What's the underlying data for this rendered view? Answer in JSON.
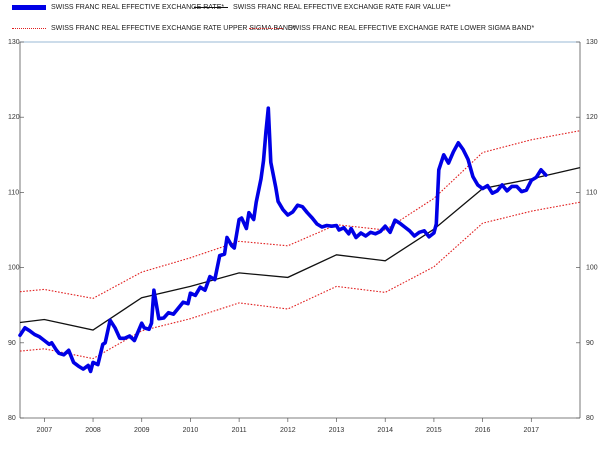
{
  "legend": {
    "actual_label": "SWISS FRANC REAL EFFECTIVE EXCHANGE RATE*",
    "fair_label": "SWISS FRANC REAL EFFECTIVE EXCHANGE RATE FAIR VALUE**",
    "upper_label": "SWISS FRANC REAL EFFECTIVE EXCHANGE RATE UPPER SIGMA BAND*",
    "lower_label": "SWISS FRANC REAL EFFECTIVE EXCHANGE RATE LOWER SIGMA BAND*"
  },
  "colors": {
    "actual": "#0000e6",
    "fair": "#111111",
    "band": "#e11f1f",
    "axis": "#555555",
    "topline": "#9ab8d6"
  },
  "chart_data": {
    "type": "line",
    "xlim": [
      2006.5,
      2018.0
    ],
    "ylim": [
      80,
      130
    ],
    "y_ticks": [
      80,
      90,
      100,
      110,
      120,
      130
    ],
    "x_tick_labels": [
      "2007",
      "2008",
      "2009",
      "2010",
      "2011",
      "2012",
      "2013",
      "2014",
      "2015",
      "2016",
      "2017"
    ],
    "grid": false,
    "legend_position": "top",
    "series": [
      {
        "name": "SWISS FRANC REAL EFFECTIVE EXCHANGE RATE*",
        "key": "actual",
        "x": [
          2006.5,
          2006.6,
          2006.7,
          2006.8,
          2006.9,
          2007.0,
          2007.1,
          2007.15,
          2007.25,
          2007.3,
          2007.4,
          2007.5,
          2007.6,
          2007.7,
          2007.8,
          2007.9,
          2007.95,
          2008.0,
          2008.1,
          2008.2,
          2008.25,
          2008.35,
          2008.45,
          2008.55,
          2008.65,
          2008.75,
          2008.85,
          2009.0,
          2009.05,
          2009.15,
          2009.2,
          2009.25,
          2009.35,
          2009.45,
          2009.55,
          2009.65,
          2009.75,
          2009.85,
          2009.95,
          2010.0,
          2010.1,
          2010.2,
          2010.3,
          2010.4,
          2010.5,
          2010.6,
          2010.7,
          2010.75,
          2010.85,
          2010.9,
          2011.0,
          2011.05,
          2011.15,
          2011.2,
          2011.3,
          2011.35,
          2011.45,
          2011.5,
          2011.55,
          2011.6,
          2011.65,
          2011.75,
          2011.8,
          2011.9,
          2012.0,
          2012.1,
          2012.2,
          2012.3,
          2012.4,
          2012.5,
          2012.6,
          2012.7,
          2012.8,
          2012.9,
          2013.0,
          2013.05,
          2013.15,
          2013.25,
          2013.3,
          2013.4,
          2013.5,
          2013.6,
          2013.7,
          2013.8,
          2013.9,
          2014.0,
          2014.1,
          2014.2,
          2014.3,
          2014.4,
          2014.5,
          2014.6,
          2014.7,
          2014.8,
          2014.9,
          2015.0,
          2015.05,
          2015.1,
          2015.2,
          2015.3,
          2015.4,
          2015.5,
          2015.6,
          2015.7,
          2015.8,
          2015.9,
          2016.0,
          2016.1,
          2016.2,
          2016.3,
          2016.4,
          2016.5,
          2016.6,
          2016.7,
          2016.8,
          2016.9,
          2017.0,
          2017.1,
          2017.2,
          2017.3
        ],
        "y": [
          91.0,
          92.0,
          91.6,
          91.1,
          90.8,
          90.3,
          89.8,
          90.0,
          89.0,
          88.6,
          88.4,
          89.0,
          87.4,
          86.9,
          86.5,
          87.0,
          86.2,
          87.4,
          87.1,
          89.8,
          90.0,
          93.0,
          92.0,
          90.6,
          90.6,
          90.9,
          90.3,
          92.6,
          92.0,
          91.8,
          92.6,
          97.0,
          93.2,
          93.3,
          94.0,
          93.8,
          94.6,
          95.4,
          95.2,
          96.6,
          96.3,
          97.4,
          97.0,
          98.8,
          98.4,
          101.6,
          101.8,
          104.0,
          102.9,
          102.6,
          106.4,
          106.6,
          105.2,
          107.3,
          106.4,
          108.7,
          111.8,
          114.2,
          118.0,
          121.2,
          114.0,
          110.7,
          108.8,
          107.7,
          107.0,
          107.4,
          108.3,
          108.1,
          107.3,
          106.6,
          105.8,
          105.4,
          105.6,
          105.5,
          105.6,
          105.0,
          105.3,
          104.5,
          105.2,
          104.0,
          104.6,
          104.2,
          104.7,
          104.5,
          104.8,
          105.5,
          104.7,
          106.3,
          105.9,
          105.4,
          104.9,
          104.2,
          104.7,
          104.9,
          104.1,
          104.6,
          105.8,
          113.0,
          115.0,
          113.9,
          115.4,
          116.6,
          115.7,
          114.4,
          112.1,
          111.0,
          110.5,
          110.9,
          109.9,
          110.2,
          111.0,
          110.2,
          110.8,
          110.8,
          110.1,
          110.3,
          111.6,
          112.0,
          113.0,
          112.3
        ]
      },
      {
        "name": "SWISS FRANC REAL EFFECTIVE EXCHANGE RATE FAIR VALUE**",
        "key": "fair",
        "x": [
          2006.5,
          2007.0,
          2008.0,
          2009.0,
          2010.0,
          2011.0,
          2012.0,
          2013.0,
          2014.0,
          2015.0,
          2016.0,
          2017.0,
          2018.0
        ],
        "y": [
          92.7,
          93.1,
          91.7,
          96.0,
          97.5,
          99.3,
          98.7,
          101.7,
          100.9,
          105.1,
          110.5,
          111.8,
          113.3
        ]
      },
      {
        "name": "SWISS FRANC REAL EFFECTIVE EXCHANGE RATE UPPER SIGMA BAND*",
        "key": "upper",
        "x": [
          2006.5,
          2007.0,
          2008.0,
          2009.0,
          2010.0,
          2011.0,
          2012.0,
          2013.0,
          2014.0,
          2015.0,
          2016.0,
          2017.0,
          2018.0
        ],
        "y": [
          96.8,
          97.1,
          95.9,
          99.4,
          101.3,
          103.5,
          102.9,
          105.7,
          105.0,
          109.2,
          115.3,
          117.0,
          118.2
        ]
      },
      {
        "name": "SWISS FRANC REAL EFFECTIVE EXCHANGE RATE LOWER SIGMA BAND*",
        "key": "lower",
        "x": [
          2006.5,
          2007.0,
          2008.0,
          2009.0,
          2010.0,
          2011.0,
          2012.0,
          2013.0,
          2014.0,
          2015.0,
          2016.0,
          2017.0,
          2018.0
        ],
        "y": [
          88.9,
          89.2,
          87.9,
          91.6,
          93.2,
          95.3,
          94.5,
          97.5,
          96.7,
          100.1,
          105.9,
          107.5,
          108.7
        ]
      }
    ]
  }
}
